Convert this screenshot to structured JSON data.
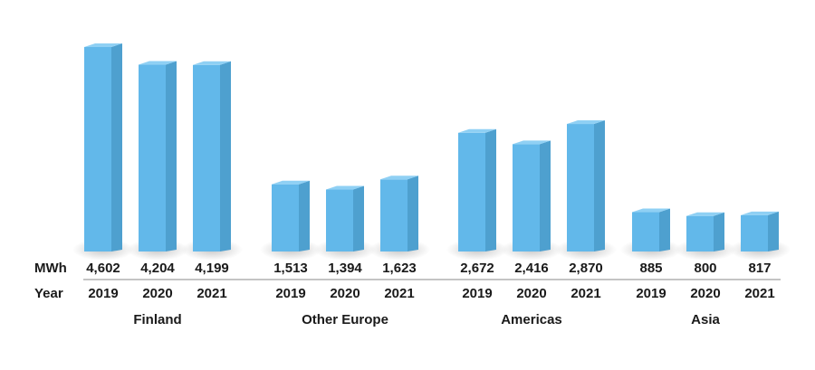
{
  "chart_data": {
    "type": "bar",
    "row_labels": {
      "values": "MWh",
      "years": "Year"
    },
    "groups": [
      {
        "name": "Finland",
        "years": [
          "2019",
          "2020",
          "2021"
        ],
        "values": [
          4602,
          4204,
          4199
        ],
        "labels": [
          "4,602",
          "4,204",
          "4,199"
        ]
      },
      {
        "name": "Other Europe",
        "years": [
          "2019",
          "2020",
          "2021"
        ],
        "values": [
          1513,
          1394,
          1623
        ],
        "labels": [
          "1,513",
          "1,394",
          "1,623"
        ]
      },
      {
        "name": "Americas",
        "years": [
          "2019",
          "2020",
          "2021"
        ],
        "values": [
          2672,
          2416,
          2870
        ],
        "labels": [
          "2,672",
          "2,416",
          "2,870"
        ]
      },
      {
        "name": "Asia",
        "years": [
          "2019",
          "2020",
          "2021"
        ],
        "values": [
          885,
          800,
          817
        ],
        "labels": [
          "885",
          "800",
          "817"
        ]
      }
    ],
    "colors": {
      "bar_front": "#62b8ea",
      "bar_side": "#4ea0cf",
      "bar_top": "#8fd0f4",
      "axis_line": "#888888"
    },
    "grid": false,
    "legend": "none"
  }
}
